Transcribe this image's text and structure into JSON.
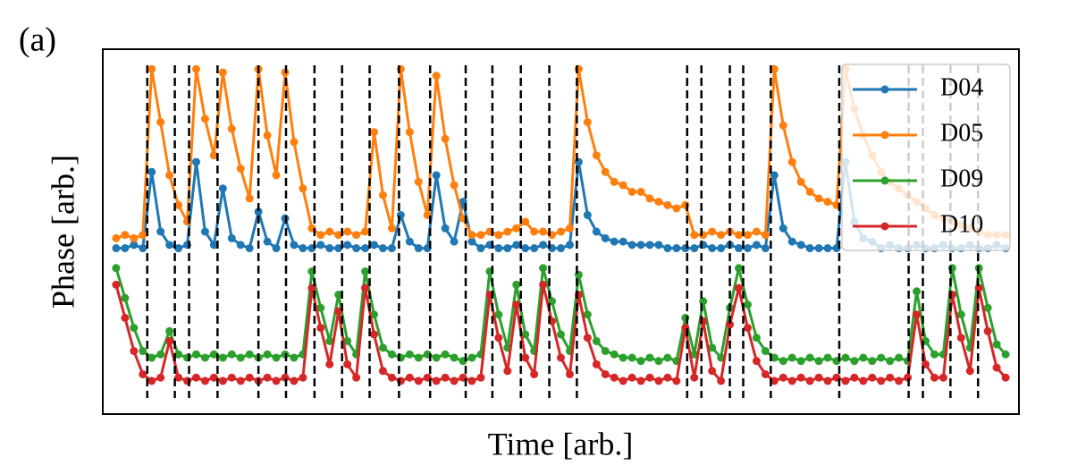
{
  "chart_data": {
    "type": "line",
    "panel_label": "(a)",
    "xlabel": "Time [arb.]",
    "ylabel": "Phase [arb.]",
    "xlim": [
      -1.5,
      101.5
    ],
    "ylim": [
      0,
      11
    ],
    "legend": "upper right",
    "x": [
      0,
      1,
      2,
      3,
      4,
      5,
      6,
      7,
      8,
      9,
      10,
      11,
      12,
      13,
      14,
      15,
      16,
      17,
      18,
      19,
      20,
      21,
      22,
      23,
      24,
      25,
      26,
      27,
      28,
      29,
      30,
      31,
      32,
      33,
      34,
      35,
      36,
      37,
      38,
      39,
      40,
      41,
      42,
      43,
      44,
      45,
      46,
      47,
      48,
      49,
      50,
      51,
      52,
      53,
      54,
      55,
      56,
      57,
      58,
      59,
      60,
      61,
      62,
      63,
      64,
      65,
      66,
      67,
      68,
      69,
      70,
      71,
      72,
      73,
      74,
      75,
      76,
      77,
      78,
      79,
      80,
      81,
      82,
      83,
      84,
      85,
      86,
      87,
      88,
      89,
      90,
      91,
      92,
      93,
      94,
      95,
      96,
      97,
      98,
      99,
      100
    ],
    "series": [
      {
        "name": "D04",
        "color": "#1f77b4",
        "values": [
          5.0,
          5.0,
          5.1,
          5.0,
          7.3,
          5.5,
          5.1,
          5.0,
          5.1,
          7.6,
          5.5,
          5.1,
          6.8,
          5.3,
          5.1,
          5.0,
          6.1,
          5.2,
          5.0,
          5.9,
          5.1,
          5.0,
          5.0,
          5.1,
          5.0,
          5.0,
          5.1,
          5.0,
          5.0,
          5.1,
          5.0,
          5.0,
          6.0,
          5.2,
          5.0,
          5.0,
          7.2,
          5.6,
          5.2,
          6.4,
          5.2,
          5.0,
          5.1,
          5.0,
          5.0,
          5.1,
          5.0,
          5.0,
          5.1,
          5.0,
          5.0,
          5.1,
          7.6,
          6.0,
          5.5,
          5.3,
          5.2,
          5.2,
          5.1,
          5.1,
          5.1,
          5.1,
          5.0,
          5.0,
          5.0,
          5.0,
          5.1,
          5.0,
          5.0,
          5.1,
          5.0,
          5.0,
          5.1,
          5.0,
          7.2,
          5.6,
          5.2,
          5.1,
          5.0,
          5.0,
          5.0,
          5.0,
          7.6,
          5.8,
          5.3,
          5.2,
          5.0,
          5.1,
          5.0,
          5.0,
          5.1,
          5.0,
          5.0,
          5.1,
          5.0,
          5.0,
          5.1,
          5.0,
          5.0,
          5.1,
          5.0
        ]
      },
      {
        "name": "D05",
        "color": "#ff7f0e",
        "values": [
          5.3,
          5.4,
          5.3,
          5.4,
          10.4,
          8.8,
          7.2,
          6.3,
          5.8,
          10.4,
          8.9,
          7.8,
          10.3,
          8.6,
          7.4,
          6.5,
          10.4,
          8.4,
          7.2,
          10.3,
          8.2,
          6.8,
          5.6,
          5.4,
          5.5,
          5.4,
          5.5,
          5.4,
          5.5,
          8.5,
          6.6,
          5.6,
          10.4,
          8.5,
          7.0,
          6.0,
          10.2,
          8.3,
          6.9,
          5.9,
          5.4,
          5.4,
          5.5,
          5.4,
          5.5,
          5.6,
          5.8,
          5.5,
          5.5,
          5.4,
          5.5,
          5.6,
          10.4,
          8.8,
          7.8,
          7.3,
          7.0,
          6.9,
          6.7,
          6.7,
          6.5,
          6.4,
          6.3,
          6.2,
          6.3,
          5.4,
          5.4,
          5.5,
          5.4,
          5.5,
          5.4,
          5.4,
          5.5,
          5.4,
          10.4,
          8.7,
          7.6,
          7.0,
          6.7,
          6.5,
          6.4,
          6.3,
          10.4,
          9.2,
          8.4,
          7.8,
          7.3,
          7.0,
          6.8,
          6.6,
          6.4,
          6.2,
          6.0,
          5.9,
          5.8,
          5.7,
          5.6,
          5.5,
          5.4,
          5.4,
          5.4
        ]
      },
      {
        "name": "D09",
        "color": "#2ca02c",
        "values": [
          4.4,
          3.5,
          2.6,
          1.9,
          1.7,
          1.8,
          2.5,
          1.8,
          1.7,
          1.8,
          1.7,
          1.8,
          1.7,
          1.8,
          1.7,
          1.8,
          1.7,
          1.8,
          1.7,
          1.8,
          1.7,
          1.8,
          4.3,
          3.2,
          2.2,
          3.6,
          2.2,
          1.8,
          4.3,
          3.0,
          2.0,
          1.8,
          1.7,
          1.8,
          1.7,
          1.8,
          1.7,
          1.8,
          1.7,
          1.6,
          1.7,
          1.8,
          4.3,
          3.0,
          2.0,
          3.9,
          2.4,
          1.9,
          4.4,
          3.4,
          2.4,
          1.9,
          4.2,
          3.0,
          2.2,
          1.9,
          1.8,
          1.7,
          1.7,
          1.6,
          1.7,
          1.6,
          1.7,
          1.6,
          2.9,
          1.8,
          3.4,
          2.0,
          1.7,
          3.2,
          4.4,
          3.3,
          2.3,
          1.9,
          1.7,
          1.6,
          1.7,
          1.6,
          1.7,
          1.6,
          1.7,
          1.6,
          1.7,
          1.6,
          1.7,
          1.6,
          1.7,
          1.6,
          1.7,
          1.6,
          3.7,
          2.2,
          1.8,
          1.8,
          4.4,
          3.0,
          2.0,
          4.4,
          3.2,
          2.1,
          1.8
        ]
      },
      {
        "name": "D10",
        "color": "#d62728",
        "values": [
          3.9,
          2.9,
          1.9,
          1.2,
          1.0,
          1.1,
          2.2,
          1.1,
          1.0,
          1.1,
          1.0,
          1.1,
          1.0,
          1.1,
          1.0,
          1.1,
          1.0,
          1.1,
          1.0,
          1.1,
          1.0,
          1.1,
          3.8,
          2.6,
          1.5,
          3.1,
          1.5,
          1.1,
          3.8,
          2.4,
          1.3,
          1.1,
          1.0,
          1.1,
          1.0,
          1.1,
          1.0,
          1.1,
          1.0,
          1.1,
          1.0,
          1.1,
          3.6,
          2.3,
          1.3,
          3.3,
          1.7,
          1.2,
          3.9,
          2.8,
          1.7,
          1.2,
          3.6,
          2.3,
          1.5,
          1.2,
          1.1,
          1.0,
          1.1,
          1.0,
          1.1,
          1.0,
          1.1,
          1.0,
          2.6,
          1.1,
          2.8,
          1.3,
          1.0,
          2.7,
          3.8,
          2.6,
          1.6,
          1.2,
          1.0,
          1.1,
          1.0,
          1.1,
          1.0,
          1.1,
          1.0,
          1.1,
          1.0,
          1.1,
          1.0,
          1.1,
          1.0,
          1.1,
          1.0,
          1.1,
          3.0,
          1.5,
          1.1,
          1.1,
          3.6,
          2.3,
          1.3,
          3.8,
          2.5,
          1.4,
          1.1
        ]
      }
    ],
    "events": [
      3.5,
      6.6,
      8.2,
      11.4,
      16.0,
      19.1,
      22.3,
      25.4,
      28.5,
      31.8,
      35.3,
      39.3,
      42.3,
      45.5,
      48.7,
      51.8,
      64.2,
      65.8,
      69.0,
      70.5,
      73.6,
      81.3,
      89.1,
      90.7,
      93.8,
      96.9
    ]
  }
}
